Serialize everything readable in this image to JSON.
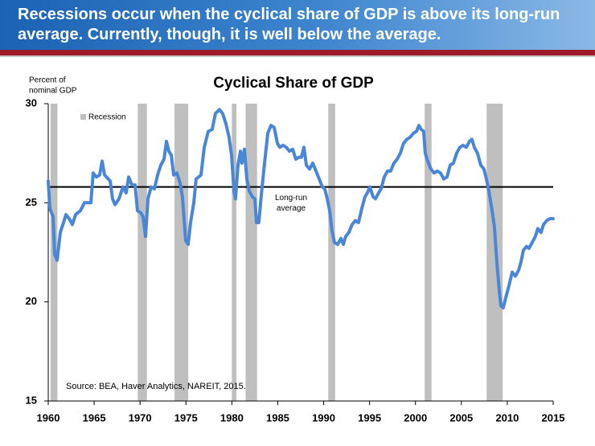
{
  "header": {
    "title": "Recessions occur when the cyclical share of GDP is above its long-run average. Currently, though, it is well below the average."
  },
  "chart_data": {
    "type": "line",
    "title": "Cyclical Share of GDP",
    "ylabel": [
      "Percent of",
      "nominal GDP"
    ],
    "source": "Source: BEA, Haver Analytics, NAREIT, 2015.",
    "recession_label": "Recession",
    "recession_color": "#bfbfbf",
    "long_run_average": 25.8,
    "long_run_label": [
      "Long-run",
      "average"
    ],
    "long_run_color": "#000000",
    "xlim": [
      1960,
      2015
    ],
    "xticks": [
      1960,
      1965,
      1970,
      1975,
      1980,
      1985,
      1990,
      1995,
      2000,
      2005,
      2010,
      2015
    ],
    "ylim": [
      15,
      30
    ],
    "yticks": [
      15,
      20,
      25,
      30
    ],
    "grid": false,
    "recessions": [
      [
        1960.25,
        1961.0
      ],
      [
        1969.75,
        1970.75
      ],
      [
        1973.75,
        1975.25
      ],
      [
        1980.0,
        1980.5
      ],
      [
        1981.5,
        1982.75
      ],
      [
        1990.5,
        1991.25
      ],
      [
        2001.0,
        2001.75
      ],
      [
        2007.75,
        2009.5
      ]
    ],
    "x": [
      1960.0,
      1960.18,
      1960.53,
      1960.7,
      1960.96,
      1961.31,
      1961.66,
      1961.93,
      1962.28,
      1962.63,
      1962.98,
      1963.5,
      1963.94,
      1964.29,
      1964.64,
      1964.9,
      1965.25,
      1965.6,
      1965.87,
      1966.13,
      1966.74,
      1967.01,
      1967.27,
      1967.71,
      1968.14,
      1968.49,
      1968.76,
      1969.11,
      1969.46,
      1969.72,
      1970.07,
      1970.33,
      1970.6,
      1970.86,
      1971.21,
      1971.56,
      1971.91,
      1972.26,
      1972.61,
      1972.87,
      1973.14,
      1973.4,
      1973.66,
      1974.01,
      1974.36,
      1974.62,
      1974.97,
      1975.24,
      1975.5,
      1975.85,
      1976.11,
      1976.64,
      1976.99,
      1977.43,
      1977.86,
      1978.21,
      1978.65,
      1979.0,
      1979.35,
      1979.7,
      1979.97,
      1980.23,
      1980.4,
      1980.67,
      1980.93,
      1981.1,
      1981.37,
      1981.63,
      1981.89,
      1982.24,
      1982.51,
      1982.68,
      1982.94,
      1983.21,
      1983.56,
      1983.91,
      1984.26,
      1984.61,
      1984.96,
      1985.22,
      1985.57,
      1985.92,
      1986.27,
      1986.62,
      1986.97,
      1987.32,
      1987.58,
      1987.85,
      1988.11,
      1988.46,
      1988.81,
      1989.16,
      1989.51,
      1989.86,
      1990.12,
      1990.39,
      1990.65,
      1990.91,
      1991.17,
      1991.53,
      1991.88,
      1992.14,
      1992.4,
      1992.75,
      1993.1,
      1993.45,
      1993.8,
      1994.15,
      1994.5,
      1994.76,
      1995.03,
      1995.38,
      1995.64,
      1995.99,
      1996.25,
      1996.6,
      1996.95,
      1997.3,
      1997.65,
      1998.0,
      1998.35,
      1998.7,
      1999.05,
      1999.4,
      1999.76,
      2000.11,
      2000.37,
      2000.63,
      2000.89,
      2001.07,
      2001.33,
      2001.68,
      2002.03,
      2002.38,
      2002.73,
      2003.08,
      2003.43,
      2003.78,
      2004.13,
      2004.48,
      2004.83,
      2005.18,
      2005.53,
      2005.88,
      2006.15,
      2006.41,
      2006.76,
      2007.11,
      2007.46,
      2007.72,
      2007.99,
      2008.34,
      2008.6,
      2008.86,
      2009.12,
      2009.3,
      2009.56,
      2009.82,
      2010.17,
      2010.53,
      2010.88,
      2011.23,
      2011.49,
      2011.75,
      2012.1,
      2012.36,
      2012.71,
      2013.06,
      2013.33,
      2013.68,
      2013.94,
      2014.29,
      2014.64,
      2014.99
    ],
    "series": [
      {
        "name": "Cyclical share of GDP",
        "color": "#4a86d6",
        "values": [
          26.1,
          24.7,
          24.3,
          22.4,
          22.1,
          23.5,
          24.0,
          24.4,
          24.2,
          23.9,
          24.4,
          24.6,
          25.0,
          25.0,
          25.0,
          26.5,
          26.3,
          26.4,
          27.1,
          26.4,
          26.1,
          25.2,
          24.9,
          25.2,
          25.8,
          25.5,
          26.3,
          25.9,
          25.9,
          24.6,
          24.5,
          24.3,
          23.3,
          25.2,
          25.8,
          25.7,
          26.4,
          26.9,
          27.2,
          28.1,
          27.6,
          27.4,
          26.4,
          26.5,
          26.0,
          25.3,
          23.1,
          22.9,
          24.0,
          25.0,
          26.2,
          26.4,
          27.8,
          28.6,
          28.7,
          29.5,
          29.7,
          29.5,
          29.0,
          28.3,
          27.4,
          25.6,
          25.2,
          26.9,
          27.6,
          27.0,
          27.7,
          26.2,
          25.6,
          25.3,
          25.2,
          24.0,
          24.0,
          25.4,
          27.0,
          28.5,
          28.9,
          28.8,
          28.0,
          27.8,
          27.9,
          27.8,
          27.6,
          27.7,
          27.2,
          27.3,
          27.3,
          27.8,
          26.9,
          26.7,
          27.0,
          26.6,
          26.2,
          25.8,
          25.7,
          25.2,
          24.6,
          23.6,
          23.0,
          22.9,
          23.2,
          22.9,
          23.3,
          23.5,
          23.9,
          24.1,
          24.0,
          24.7,
          25.3,
          25.5,
          25.8,
          25.3,
          25.2,
          25.5,
          25.7,
          26.3,
          26.6,
          26.6,
          27.0,
          27.2,
          27.5,
          28.0,
          28.2,
          28.3,
          28.5,
          28.6,
          28.9,
          28.7,
          28.6,
          27.5,
          27.1,
          26.7,
          26.5,
          26.6,
          26.5,
          26.2,
          26.3,
          26.9,
          27.0,
          27.5,
          27.8,
          27.9,
          27.8,
          28.1,
          28.2,
          27.8,
          27.5,
          26.9,
          26.7,
          26.2,
          25.6,
          24.6,
          23.8,
          22.0,
          20.6,
          19.8,
          19.7,
          20.2,
          20.8,
          21.5,
          21.3,
          21.6,
          22.0,
          22.6,
          22.8,
          22.7,
          23.0,
          23.3,
          23.7,
          23.5,
          23.9,
          24.1,
          24.2,
          24.2
        ]
      }
    ]
  }
}
